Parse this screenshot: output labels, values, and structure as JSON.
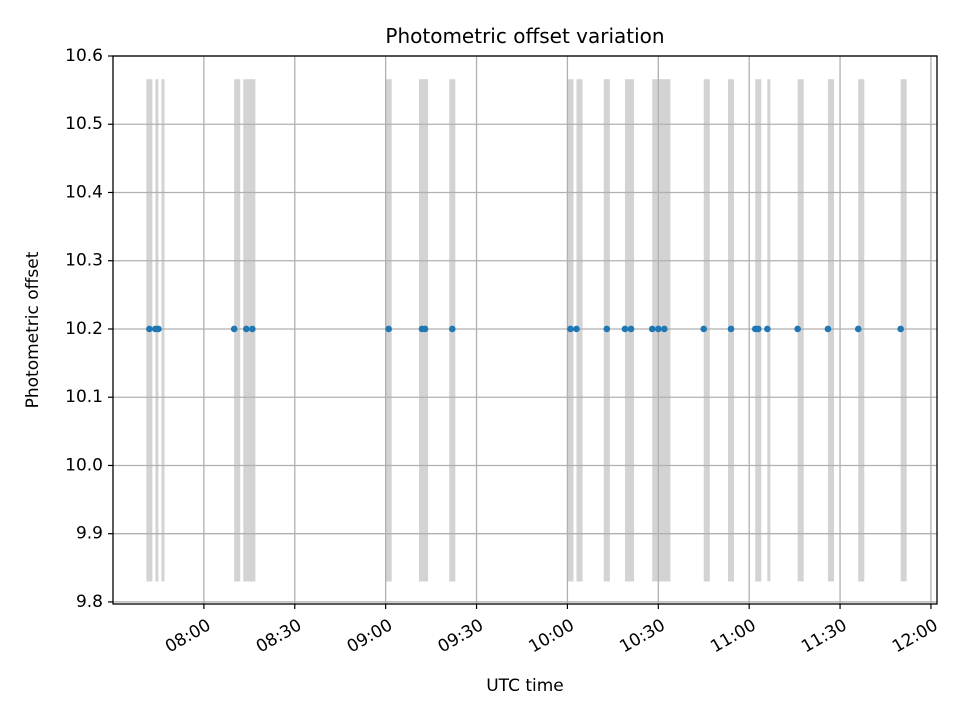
{
  "chart_data": {
    "type": "scatter",
    "title": "Photometric offset variation",
    "xlabel": "UTC time",
    "ylabel": "Photometric offset",
    "xlim": [
      "07:30",
      "12:02"
    ],
    "ylim": [
      9.797,
      10.6
    ],
    "grid": true,
    "x_ticks": [
      "08:00",
      "08:30",
      "09:00",
      "09:30",
      "10:00",
      "10:30",
      "11:00",
      "11:30",
      "12:00"
    ],
    "y_ticks": [
      9.8,
      9.9,
      10.0,
      10.1,
      10.2,
      10.3,
      10.4,
      10.5,
      10.6
    ],
    "y_tick_labels": [
      "9.8",
      "9.9",
      "10.0",
      "10.1",
      "10.2",
      "10.3",
      "10.4",
      "10.5",
      "10.6"
    ],
    "series": [
      {
        "marker_color": "#1f77b4",
        "points": [
          {
            "x": "07:42",
            "y": 10.2
          },
          {
            "x": "07:44",
            "y": 10.2
          },
          {
            "x": "07:45",
            "y": 10.2
          },
          {
            "x": "08:10",
            "y": 10.2
          },
          {
            "x": "08:14",
            "y": 10.2
          },
          {
            "x": "08:16",
            "y": 10.2
          },
          {
            "x": "09:01",
            "y": 10.2
          },
          {
            "x": "09:12",
            "y": 10.2
          },
          {
            "x": "09:13",
            "y": 10.2
          },
          {
            "x": "09:22",
            "y": 10.2
          },
          {
            "x": "10:01",
            "y": 10.2
          },
          {
            "x": "10:03",
            "y": 10.2
          },
          {
            "x": "10:13",
            "y": 10.2
          },
          {
            "x": "10:19",
            "y": 10.2
          },
          {
            "x": "10:21",
            "y": 10.2
          },
          {
            "x": "10:28",
            "y": 10.2
          },
          {
            "x": "10:30",
            "y": 10.2
          },
          {
            "x": "10:32",
            "y": 10.2
          },
          {
            "x": "10:45",
            "y": 10.2
          },
          {
            "x": "10:54",
            "y": 10.2
          },
          {
            "x": "11:02",
            "y": 10.2
          },
          {
            "x": "11:03",
            "y": 10.2
          },
          {
            "x": "11:06",
            "y": 10.2
          },
          {
            "x": "11:16",
            "y": 10.2
          },
          {
            "x": "11:26",
            "y": 10.2
          },
          {
            "x": "11:36",
            "y": 10.2
          },
          {
            "x": "11:50",
            "y": 10.2
          }
        ]
      }
    ],
    "bands": {
      "color": "#d3d3d3",
      "y_range": [
        9.83,
        10.566
      ],
      "ranges": [
        [
          "07:41",
          "07:43"
        ],
        [
          "07:44",
          "07:45"
        ],
        [
          "07:46",
          "07:47"
        ],
        [
          "08:10",
          "08:12"
        ],
        [
          "08:13",
          "08:17"
        ],
        [
          "09:00",
          "09:02"
        ],
        [
          "09:11",
          "09:14"
        ],
        [
          "09:21",
          "09:23"
        ],
        [
          "10:00",
          "10:02"
        ],
        [
          "10:03",
          "10:05"
        ],
        [
          "10:12",
          "10:14"
        ],
        [
          "10:19",
          "10:22"
        ],
        [
          "10:28",
          "10:34"
        ],
        [
          "10:45",
          "10:47"
        ],
        [
          "10:53",
          "10:55"
        ],
        [
          "11:02",
          "11:04"
        ],
        [
          "11:06",
          "11:07"
        ],
        [
          "11:16",
          "11:18"
        ],
        [
          "11:26",
          "11:28"
        ],
        [
          "11:36",
          "11:38"
        ],
        [
          "11:50",
          "11:52"
        ]
      ]
    }
  }
}
